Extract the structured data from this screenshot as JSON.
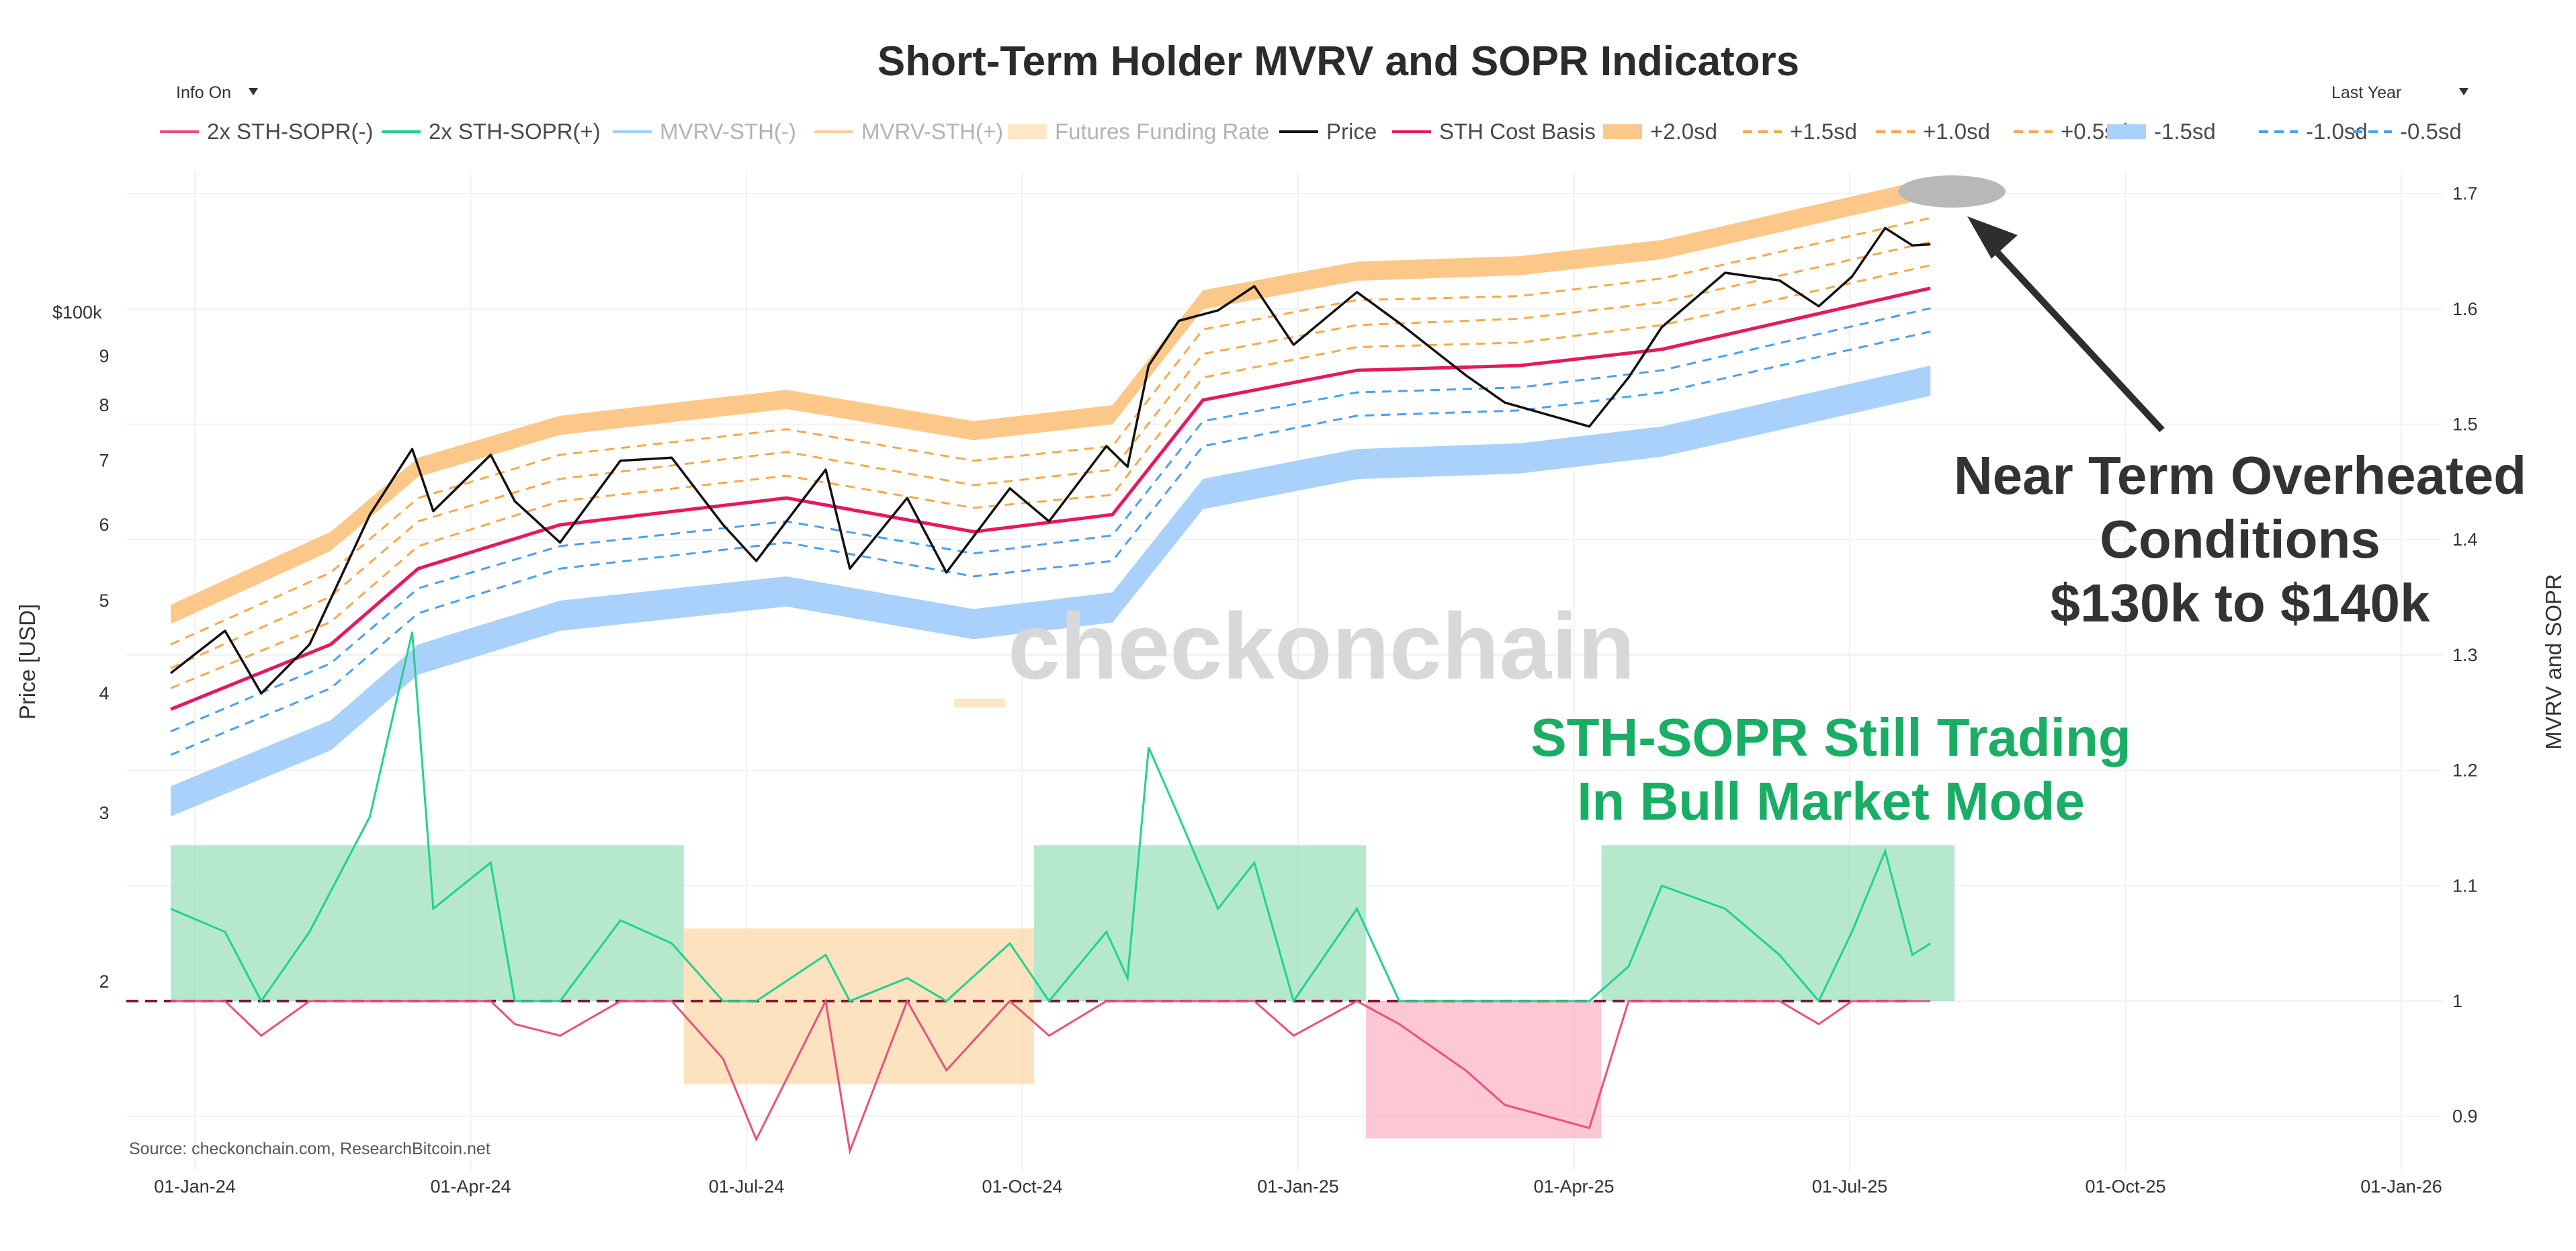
{
  "chart_data": {
    "type": "line",
    "title": "Short-Term Holder MVRV and SOPR Indicators",
    "controls": {
      "info_toggle": "Info On",
      "range_selector": "Last Year"
    },
    "legend": [
      "2x STH-SOPR(-)",
      "2x STH-SOPR(+)",
      "MVRV-STH(-)",
      "MVRV-STH(+)",
      "Futures Funding Rate",
      "Price",
      "STH Cost Basis",
      "+2.0sd",
      "+1.5sd",
      "+1.0sd",
      "+0.5sd",
      "-1.5sd",
      "-1.0sd",
      "-0.5sd"
    ],
    "legend_placement": "top",
    "colors": {
      "sopr_neg": "#e8527a",
      "sopr_pos": "#1fd38f",
      "mvrv_neg": "#9fd0f2",
      "mvrv_pos": "#f3d2a4",
      "funding": "#fde7c4",
      "price": "#111111",
      "cost_basis": "#e5195c",
      "upper_sd": "#f7a84a",
      "lower_sd": "#4aa0ee",
      "band_upper": "#fcc889",
      "band_lower": "#a9d1fb",
      "zone_green": "#8fdcb4",
      "zone_orange": "#fbd29d",
      "zone_red": "#fca9be"
    },
    "x_axis": {
      "ticks": [
        "01-Jan-24",
        "01-Apr-24",
        "01-Jul-24",
        "01-Oct-24",
        "01-Jan-25",
        "01-Apr-25",
        "01-Jul-25",
        "01-Oct-25",
        "01-Jan-26"
      ]
    },
    "y_left": {
      "label": "Price [USD]",
      "scale": "log",
      "ticks": [
        "$100k",
        "9",
        "8",
        "7",
        "6",
        "5",
        "4",
        "3",
        "2"
      ]
    },
    "y_right": {
      "label": "MVRV and SOPR",
      "ticks": [
        "1.7",
        "1.6",
        "1.5",
        "1.4",
        "1.3",
        "1.2",
        "1.1",
        "1",
        "0.9"
      ],
      "range": [
        0.88,
        1.72
      ]
    },
    "price": {
      "dates": [
        "2023-12-24",
        "2024-01-11",
        "2024-01-23",
        "2024-02-08",
        "2024-02-28",
        "2024-03-13",
        "2024-03-20",
        "2024-04-08",
        "2024-04-16",
        "2024-05-01",
        "2024-05-21",
        "2024-06-07",
        "2024-06-24",
        "2024-07-05",
        "2024-07-28",
        "2024-08-05",
        "2024-08-24",
        "2024-09-06",
        "2024-09-27",
        "2024-10-10",
        "2024-10-29",
        "2024-11-05",
        "2024-11-12",
        "2024-11-22",
        "2024-12-05",
        "2024-12-17",
        "2024-12-30",
        "2025-01-20",
        "2025-02-03",
        "2025-02-25",
        "2025-03-10",
        "2025-04-07",
        "2025-04-20",
        "2025-05-01",
        "2025-05-22",
        "2025-06-09",
        "2025-06-22",
        "2025-07-03",
        "2025-07-14",
        "2025-07-23",
        "2025-07-29"
      ],
      "values": [
        42000,
        46500,
        40000,
        45000,
        61500,
        72000,
        62000,
        71000,
        63500,
        57500,
        70000,
        70500,
        60000,
        55000,
        68500,
        54000,
        64000,
        53500,
        65500,
        60500,
        72500,
        69000,
        88000,
        98000,
        100500,
        106500,
        92500,
        105000,
        97500,
        86000,
        80500,
        76000,
        85500,
        96500,
        110000,
        108000,
        101500,
        109000,
        122500,
        117500,
        117800
      ]
    },
    "sth_cost_basis": {
      "dates": [
        "2023-12-24",
        "2024-02-15",
        "2024-03-15",
        "2024-05-01",
        "2024-07-15",
        "2024-09-15",
        "2024-10-31",
        "2024-11-30",
        "2025-01-20",
        "2025-03-15",
        "2025-05-01",
        "2025-07-29"
      ],
      "values": [
        38500,
        45000,
        54000,
        60000,
        64000,
        59000,
        61500,
        81000,
        87000,
        88000,
        91500,
        106000
      ]
    },
    "sd_bands": {
      "dates": [
        "2023-12-24",
        "2024-02-15",
        "2024-03-15",
        "2024-05-01",
        "2024-07-15",
        "2024-09-15",
        "2024-10-31",
        "2024-11-30",
        "2025-01-20",
        "2025-03-15",
        "2025-05-01",
        "2025-07-29"
      ],
      "plus_2_0": [
        49500,
        59000,
        70500,
        78000,
        83000,
        77000,
        80000,
        105500,
        113000,
        114500,
        119000,
        138000
      ],
      "plus_1_5": [
        45000,
        53500,
        64000,
        71000,
        75500,
        70000,
        72500,
        96000,
        103000,
        104000,
        108500,
        125500
      ],
      "plus_1_0": [
        42500,
        50500,
        60500,
        67000,
        71500,
        66000,
        68500,
        90500,
        97000,
        98500,
        102500,
        118500
      ],
      "plus_0_5": [
        40500,
        47500,
        57000,
        63500,
        67500,
        62500,
        64500,
        85500,
        92000,
        93000,
        97000,
        112000
      ],
      "minus_0_5": [
        36500,
        43000,
        51500,
        57000,
        60500,
        56000,
        58500,
        77000,
        82500,
        83500,
        87000,
        101000
      ],
      "minus_1_0": [
        34500,
        40500,
        48500,
        54000,
        57500,
        53000,
        55000,
        72500,
        78000,
        79000,
        82500,
        95500
      ],
      "minus_1_5": [
        32000,
        37500,
        45000,
        50000,
        53000,
        49000,
        51000,
        67000,
        72000,
        73000,
        76000,
        88000
      ]
    },
    "sth_sopr_2x": {
      "dates": [
        "2023-12-24",
        "2024-01-11",
        "2024-01-23",
        "2024-02-08",
        "2024-02-28",
        "2024-03-13",
        "2024-03-20",
        "2024-04-08",
        "2024-04-16",
        "2024-05-01",
        "2024-05-21",
        "2024-06-07",
        "2024-06-24",
        "2024-07-05",
        "2024-07-28",
        "2024-08-05",
        "2024-08-24",
        "2024-09-06",
        "2024-09-27",
        "2024-10-10",
        "2024-10-29",
        "2024-11-05",
        "2024-11-12",
        "2024-11-22",
        "2024-12-05",
        "2024-12-17",
        "2024-12-30",
        "2025-01-20",
        "2025-02-03",
        "2025-02-25",
        "2025-03-10",
        "2025-04-07",
        "2025-04-20",
        "2025-05-01",
        "2025-05-22",
        "2025-06-09",
        "2025-06-22",
        "2025-07-03",
        "2025-07-14",
        "2025-07-23",
        "2025-07-29"
      ],
      "values": [
        1.08,
        1.06,
        0.97,
        1.06,
        1.16,
        1.32,
        1.08,
        1.12,
        0.98,
        0.97,
        1.07,
        1.05,
        0.95,
        0.88,
        1.04,
        0.87,
        1.02,
        0.94,
        1.05,
        0.97,
        1.06,
        1.02,
        1.22,
        1.16,
        1.08,
        1.12,
        0.97,
        1.08,
        0.98,
        0.94,
        0.91,
        0.89,
        1.03,
        1.1,
        1.08,
        1.04,
        0.98,
        1.06,
        1.13,
        1.04,
        1.05
      ]
    },
    "zones": [
      {
        "start": "2023-12-24",
        "end": "2024-06-11",
        "color": "green",
        "sopr_range": [
          1.0,
          1.135
        ]
      },
      {
        "start": "2024-06-11",
        "end": "2024-10-05",
        "color": "orange",
        "sopr_range": [
          0.928,
          1.063
        ]
      },
      {
        "start": "2024-10-05",
        "end": "2025-01-23",
        "color": "green",
        "sopr_range": [
          1.0,
          1.135
        ]
      },
      {
        "start": "2025-01-23",
        "end": "2025-04-11",
        "color": "red",
        "sopr_range": [
          0.881,
          1.0
        ]
      },
      {
        "start": "2025-04-11",
        "end": "2025-08-06",
        "color": "green",
        "sopr_range": [
          1.0,
          1.135
        ]
      }
    ],
    "annotations": {
      "overheated": [
        "Near Term Overheated",
        "Conditions",
        "$130k to $140k"
      ],
      "sopr": [
        "STH-SOPR Still Trading",
        "In Bull Market Mode"
      ]
    },
    "watermark": "checkonchain",
    "source": "Source: checkonchain.com, ResearchBitcoin.net"
  }
}
